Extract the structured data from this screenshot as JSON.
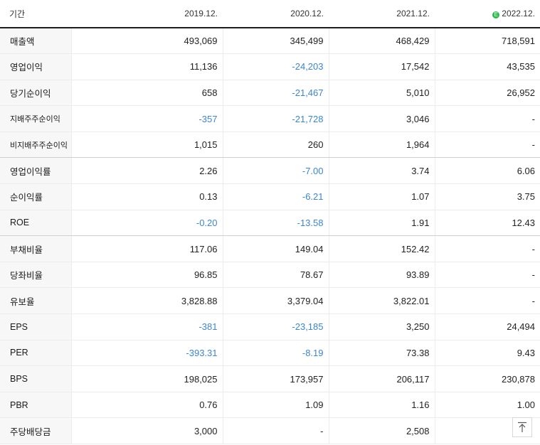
{
  "header": {
    "label": "기간",
    "periods": [
      "2019.12.",
      "2020.12.",
      "2021.12.",
      "2022.12."
    ],
    "estimate_badge": "E"
  },
  "rows": [
    {
      "label": "매출액",
      "values": [
        "493,069",
        "345,499",
        "468,429",
        "718,591"
      ]
    },
    {
      "label": "영업이익",
      "values": [
        "11,136",
        "-24,203",
        "17,542",
        "43,535"
      ]
    },
    {
      "label": "당기순이익",
      "values": [
        "658",
        "-21,467",
        "5,010",
        "26,952"
      ]
    },
    {
      "label": "지배주주순이익",
      "values": [
        "-357",
        "-21,728",
        "3,046",
        "-"
      ]
    },
    {
      "label": "비지배주주순이익",
      "values": [
        "1,015",
        "260",
        "1,964",
        "-"
      ]
    },
    {
      "label": "영업이익률",
      "values": [
        "2.26",
        "-7.00",
        "3.74",
        "6.06"
      ]
    },
    {
      "label": "순이익률",
      "values": [
        "0.13",
        "-6.21",
        "1.07",
        "3.75"
      ]
    },
    {
      "label": "ROE",
      "values": [
        "-0.20",
        "-13.58",
        "1.91",
        "12.43"
      ]
    },
    {
      "label": "부채비율",
      "values": [
        "117.06",
        "149.04",
        "152.42",
        "-"
      ]
    },
    {
      "label": "당좌비율",
      "values": [
        "96.85",
        "78.67",
        "93.89",
        "-"
      ]
    },
    {
      "label": "유보율",
      "values": [
        "3,828.88",
        "3,379.04",
        "3,822.01",
        "-"
      ]
    },
    {
      "label": "EPS",
      "values": [
        "-381",
        "-23,185",
        "3,250",
        "24,494"
      ]
    },
    {
      "label": "PER",
      "values": [
        "-393.31",
        "-8.19",
        "73.38",
        "9.43"
      ]
    },
    {
      "label": "BPS",
      "values": [
        "198,025",
        "173,957",
        "206,117",
        "230,878"
      ]
    },
    {
      "label": "PBR",
      "values": [
        "0.76",
        "1.09",
        "1.16",
        "1.00"
      ]
    },
    {
      "label": "주당배당금",
      "values": [
        "3,000",
        "-",
        "2,508",
        ""
      ]
    }
  ],
  "colors": {
    "negative": "#3b86d1",
    "estimate_badge": "#2db84b",
    "header_rule": "#1d1d1d"
  },
  "icons": {
    "scroll_top": "arrow-up-to-top-icon",
    "estimate": "estimate-badge-icon"
  }
}
